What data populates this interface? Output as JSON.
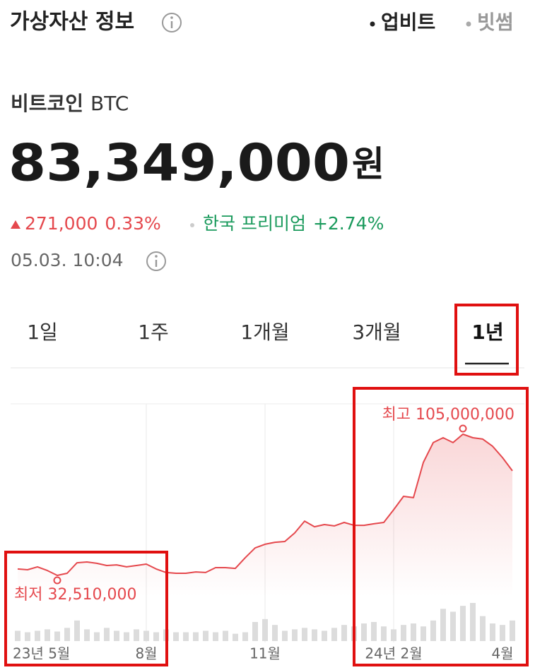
{
  "header": {
    "title": "가상자산 정보",
    "exchanges": [
      "업비트",
      "빗썸"
    ]
  },
  "asset": {
    "name": "비트코인",
    "symbol": "BTC",
    "price": "83,349,000",
    "currency": "원",
    "change": "271,000",
    "change_rate": "0.33%",
    "premium_label": "한국 프리미엄",
    "premium": "+2.74%",
    "timestamp": "05.03. 10:04"
  },
  "tabs": [
    "1일",
    "1주",
    "1개월",
    "3개월",
    "1년"
  ],
  "active_tab": 4,
  "chart_data": {
    "type": "line",
    "color": "#e5484d",
    "categories": [
      "23년 5월",
      null,
      null,
      null,
      null,
      null,
      null,
      null,
      null,
      null,
      null,
      null,
      null,
      "8월",
      null,
      null,
      null,
      null,
      null,
      null,
      null,
      null,
      null,
      null,
      null,
      "11월",
      null,
      null,
      null,
      null,
      null,
      null,
      null,
      null,
      null,
      null,
      null,
      null,
      "24년 2월",
      null,
      null,
      null,
      null,
      null,
      null,
      null,
      null,
      null,
      null,
      "4월",
      null
    ],
    "values": [
      35800000,
      35400000,
      36900000,
      35000000,
      32510000,
      33600000,
      39000000,
      39400000,
      38700000,
      37600000,
      37900000,
      36900000,
      37600000,
      38300000,
      35800000,
      34000000,
      33600000,
      33600000,
      34300000,
      34000000,
      36500000,
      36500000,
      36100000,
      41600000,
      46600000,
      48500000,
      49500000,
      49900000,
      54300000,
      60400000,
      57500000,
      58600000,
      57900000,
      59700000,
      58200000,
      58200000,
      59000000,
      59700000,
      66200000,
      73100000,
      72400000,
      90500000,
      100700000,
      103200000,
      100700000,
      105000000,
      103200000,
      102500000,
      98800000,
      93000000,
      86200000
    ],
    "annotations": {
      "low": "최저 32,510,000",
      "high": "최고 105,000,000"
    },
    "volume": {
      "color": "#dcdcdc",
      "values": [
        14,
        12,
        14,
        16,
        13,
        18,
        28,
        16,
        12,
        18,
        14,
        12,
        16,
        14,
        12,
        16,
        12,
        12,
        12,
        14,
        12,
        14,
        10,
        12,
        26,
        30,
        22,
        14,
        16,
        18,
        16,
        14,
        18,
        22,
        20,
        24,
        26,
        20,
        16,
        22,
        24,
        20,
        28,
        44,
        40,
        48,
        52,
        34,
        24,
        22,
        28
      ]
    }
  }
}
